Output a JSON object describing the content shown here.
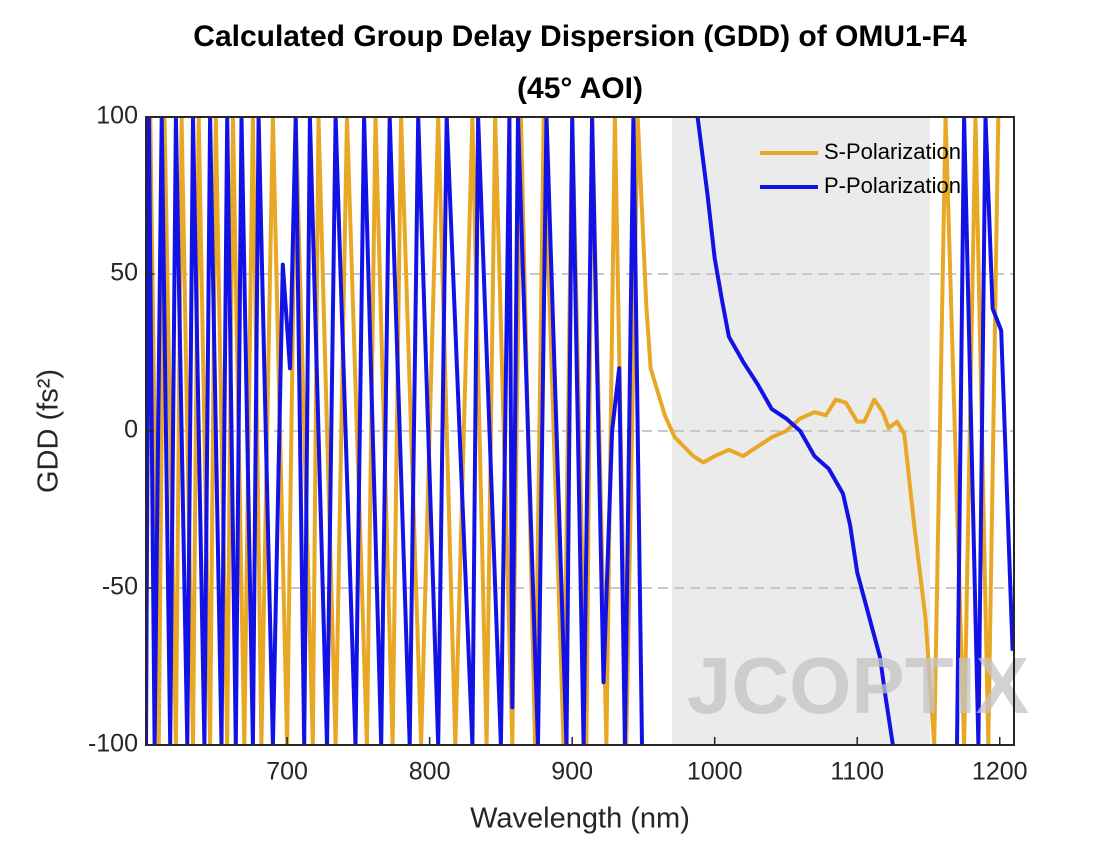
{
  "chart_data": {
    "type": "line",
    "title": [
      "Calculated Group Delay Dispersion (GDD) of OMU1-F4",
      "(45° AOI)"
    ],
    "x_label": "Wavelength (nm)",
    "y_label": "GDD (fs²)",
    "xlim": [
      601,
      1210
    ],
    "ylim": [
      -100,
      100
    ],
    "xticks": [
      700,
      800,
      900,
      1000,
      1100,
      1200
    ],
    "yticks": [
      -100,
      -50,
      0,
      50,
      100
    ],
    "grid": true,
    "legend": "upper right",
    "highlight": {
      "from": 970,
      "to": 1151,
      "color": "#ebebeb"
    },
    "watermark": "JCOPTIX",
    "series": [
      {
        "name": "S-Polarization",
        "color": "#e8a825",
        "x": [
          601,
          604,
          610,
          614,
          622,
          626,
          634,
          638,
          646,
          650,
          658,
          662,
          670,
          676,
          682,
          690,
          700,
          706,
          718,
          722,
          734,
          742,
          756,
          762,
          774,
          780,
          794,
          806,
          818,
          830,
          840,
          846,
          858,
          864,
          874,
          880,
          894,
          900,
          910,
          914,
          924,
          930,
          938,
          946,
          952,
          955,
          965,
          972,
          985,
          992,
          1000,
          1010,
          1020,
          1030,
          1040,
          1050,
          1060,
          1070,
          1078,
          1085,
          1092,
          1100,
          1105,
          1112,
          1118,
          1122,
          1128,
          1133,
          1140,
          1148,
          1154,
          1162,
          1175,
          1183,
          1192,
          1199
        ],
        "values": [
          -80,
          100,
          -100,
          100,
          -100,
          100,
          -100,
          100,
          -100,
          100,
          -100,
          100,
          -100,
          100,
          -100,
          100,
          -100,
          100,
          -100,
          100,
          -100,
          100,
          -100,
          100,
          -100,
          100,
          -100,
          100,
          -100,
          100,
          -100,
          100,
          -100,
          100,
          -100,
          100,
          -100,
          100,
          -100,
          100,
          -100,
          100,
          -100,
          100,
          40,
          20,
          5,
          -2,
          -8,
          -10,
          -8,
          -6,
          -8,
          -5,
          -2,
          0,
          4,
          6,
          5,
          10,
          9,
          3,
          3,
          10,
          6,
          1,
          3,
          -1,
          -30,
          -60,
          -100,
          100,
          -100,
          100,
          -100,
          100
        ]
      },
      {
        "name": "P-Polarization",
        "color": "#1212e6",
        "x": [
          601,
          603,
          607,
          612,
          618,
          622,
          630,
          634,
          642,
          646,
          654,
          658,
          664,
          668,
          676,
          680,
          690,
          697,
          702,
          706,
          712,
          716,
          728,
          734,
          748,
          754,
          766,
          772,
          786,
          792,
          806,
          812,
          830,
          834,
          850,
          856,
          858,
          862,
          876,
          882,
          896,
          900,
          908,
          914,
          922,
          928,
          933,
          937,
          943,
          949,
          960,
          988,
          995,
          1000,
          1005,
          1010,
          1020,
          1030,
          1040,
          1050,
          1060,
          1070,
          1080,
          1090,
          1095,
          1100,
          1110,
          1116,
          1120,
          1125,
          1140,
          1170,
          1175,
          1185,
          1190,
          1195,
          1201,
          1209
        ],
        "values": [
          -100,
          100,
          -100,
          100,
          -100,
          100,
          -100,
          100,
          -100,
          100,
          -100,
          100,
          -100,
          100,
          -100,
          100,
          -100,
          53,
          20,
          100,
          -100,
          100,
          -100,
          100,
          -100,
          100,
          -100,
          100,
          -100,
          100,
          -100,
          100,
          -100,
          100,
          -100,
          100,
          -88,
          100,
          -100,
          100,
          -100,
          100,
          -100,
          100,
          -80,
          0,
          20,
          -100,
          100,
          -100,
          null,
          100,
          75,
          55,
          42,
          30,
          22,
          15,
          7,
          4,
          0,
          -8,
          -12,
          -20,
          -30,
          -45,
          -62,
          -72,
          -85,
          -100,
          null,
          -100,
          100,
          -100,
          100,
          39,
          32,
          -70
        ]
      }
    ]
  }
}
